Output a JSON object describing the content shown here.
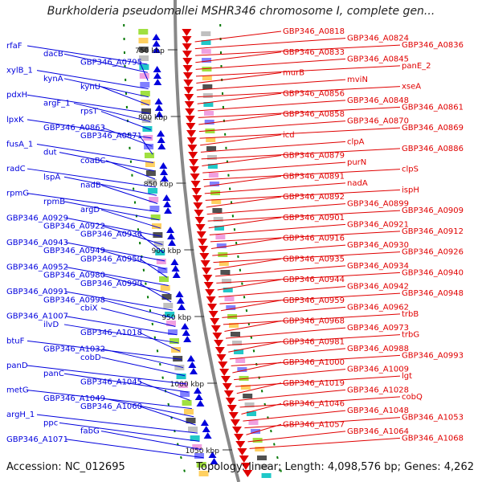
{
  "title": "Burkholderia pseudomallei MSHR346 chromosome I, complete gen...",
  "footer": {
    "accession": "Accession: NC_012695",
    "summary": "Topology: linear; Length: 4,098,576 bp; Genes: 4,262"
  },
  "colors": {
    "forward": "#e00000",
    "reverse": "#0000dd",
    "backbone": "#888888",
    "ticks": "#007700"
  },
  "ticks": [
    "750 kbp",
    "800 kbp",
    "850 kbp",
    "900 kbp",
    "950 kbp",
    "1000 kbp",
    "1050 kbp"
  ],
  "left_labels": [
    "rfaF",
    "dacB",
    "GBP346_A0795",
    "xylB_1",
    "kynA",
    "kynU",
    "pdxH",
    "argF_1",
    "rpsT",
    "lpxK",
    "GBP346_A0863",
    "GBP346_A0871",
    "fusA_1",
    "dut",
    "coaBC",
    "radC",
    "lspA",
    "nadB",
    "rpmG",
    "rpmB",
    "argD",
    "GBP346_A0929",
    "GBP346_A0922",
    "GBP346_A0936",
    "GBP346_A0943",
    "GBP346_A0949",
    "GBP346_A0950",
    "GBP346_A0952",
    "GBP346_A0980",
    "GBP346_A0990",
    "GBP346_A0991",
    "GBP346_A0998",
    "cbiX",
    "GBP346_A1007",
    "ilvD",
    "GBP346_A1018",
    "btuF",
    "GBP346_A1032",
    "cobD",
    "panD",
    "panC",
    "GBP346_A1045",
    "metG",
    "GBP346_A1049",
    "GBP346_A1060",
    "argH_1",
    "ppc",
    "fabG",
    "GBP346_A1071"
  ],
  "right_labels": [
    "GBP346_A0818",
    "GBP346_A0824",
    "GBP346_A0836",
    "GBP346_A0833",
    "GBP346_A0845",
    "panE_2",
    "murB",
    "mviN",
    "xseA",
    "GBP346_A0856",
    "GBP346_A0848",
    "GBP346_A0861",
    "GBP346_A0858",
    "GBP346_A0870",
    "GBP346_A0869",
    "icd",
    "clpA",
    "GBP346_A0886",
    "GBP346_A0879",
    "purN",
    "clpS",
    "GBP346_A0891",
    "nadA",
    "ispH",
    "GBP346_A0892",
    "GBP346_A0899",
    "GBP346_A0909",
    "GBP346_A0901",
    "GBP346_A0921",
    "GBP346_A0912",
    "GBP346_A0916",
    "GBP346_A0930",
    "GBP346_A0926",
    "GBP346_A0935",
    "GBP346_A0934",
    "GBP346_A0940",
    "GBP346_A0944",
    "GBP346_A0942",
    "GBP346_A0948",
    "GBP346_A0959",
    "GBP346_A0962",
    "trbB",
    "GBP346_A0968",
    "GBP346_A0973",
    "trbG",
    "GBP346_A0981",
    "GBP346_A0988",
    "GBP346_A0993",
    "GBP346_A1000",
    "GBP346_A1009",
    "lgt",
    "GBP346_A1019",
    "GBP346_A1028",
    "cobQ",
    "GBP346_A1046",
    "GBP346_A1048",
    "GBP346_A1053",
    "GBP346_A1057",
    "GBP346_A1064",
    "GBP346_A1068"
  ]
}
